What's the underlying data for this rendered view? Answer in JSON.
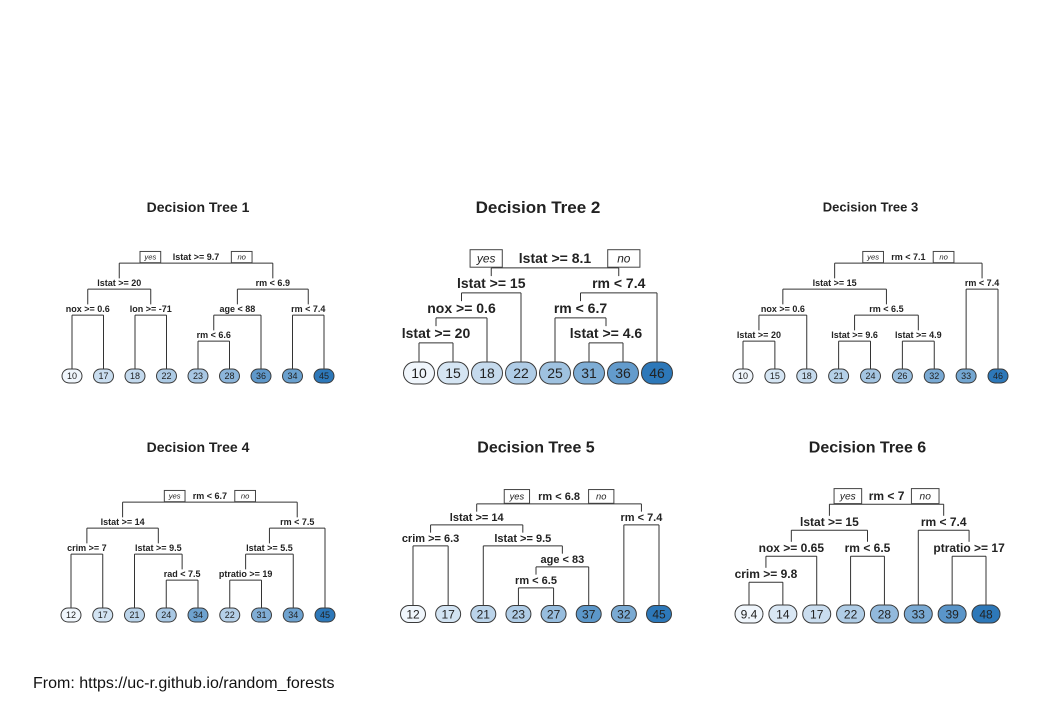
{
  "source_text": "From: https://uc-r.github.io/random_forests",
  "labels": {
    "yes": "yes",
    "no": "no"
  },
  "trees": [
    {
      "title": "Decision Tree 1",
      "root": {
        "split": "lstat >= 9.7",
        "yes": {
          "split": "lstat >= 20",
          "yes": {
            "split": "nox >= 0.6",
            "yes": {
              "leaf": "10"
            },
            "no": {
              "leaf": "17"
            }
          },
          "no": {
            "split": "lon >= -71",
            "yes": {
              "leaf": "18"
            },
            "no": {
              "leaf": "22"
            }
          }
        },
        "no": {
          "split": "rm < 6.9",
          "yes": {
            "split": "age < 88",
            "yes": {
              "split": "rm < 6.6",
              "yes": {
                "leaf": "23"
              },
              "no": {
                "leaf": "28"
              }
            },
            "no": {
              "leaf": "36"
            }
          },
          "no": {
            "split": "rm < 7.4",
            "yes": {
              "leaf": "34"
            },
            "no": {
              "leaf": "45"
            }
          }
        }
      }
    },
    {
      "title": "Decision Tree 2",
      "root": {
        "split": "lstat >= 8.1",
        "yes": {
          "split": "lstat >= 15",
          "yes": {
            "split": "nox >= 0.6",
            "yes": {
              "split": "lstat >= 20",
              "yes": {
                "leaf": "10"
              },
              "no": {
                "leaf": "15"
              }
            },
            "no": {
              "leaf": "18"
            }
          },
          "no": {
            "leaf": "22"
          }
        },
        "no": {
          "split": "rm < 7.4",
          "yes": {
            "split": "rm < 6.7",
            "yes": {
              "leaf": "25"
            },
            "no": {
              "split": "lstat >= 4.6",
              "yes": {
                "leaf": "31"
              },
              "no": {
                "leaf": "36"
              }
            }
          },
          "no": {
            "leaf": "46"
          }
        }
      }
    },
    {
      "title": "Decision Tree 3",
      "root": {
        "split": "rm < 7.1",
        "yes": {
          "split": "lstat >= 15",
          "yes": {
            "split": "nox >= 0.6",
            "yes": {
              "split": "lstat >= 20",
              "yes": {
                "leaf": "10"
              },
              "no": {
                "leaf": "15"
              }
            },
            "no": {
              "leaf": "18"
            }
          },
          "no": {
            "split": "rm < 6.5",
            "yes": {
              "split": "lstat >= 9.6",
              "yes": {
                "leaf": "21"
              },
              "no": {
                "leaf": "24"
              }
            },
            "no": {
              "split": "lstat >= 4.9",
              "yes": {
                "leaf": "26"
              },
              "no": {
                "leaf": "32"
              }
            }
          }
        },
        "no": {
          "split": "rm < 7.4",
          "yes": {
            "leaf": "33"
          },
          "no": {
            "leaf": "46"
          }
        }
      }
    },
    {
      "title": "Decision Tree 4",
      "root": {
        "split": "rm < 6.7",
        "yes": {
          "split": "lstat >= 14",
          "yes": {
            "split": "crim >= 7",
            "yes": {
              "leaf": "12"
            },
            "no": {
              "leaf": "17"
            }
          },
          "no": {
            "split": "lstat >= 9.5",
            "yes": {
              "leaf": "21"
            },
            "no": {
              "split": "rad < 7.5",
              "yes": {
                "leaf": "24"
              },
              "no": {
                "leaf": "34"
              }
            }
          }
        },
        "no": {
          "split": "rm < 7.5",
          "yes": {
            "split": "lstat >= 5.5",
            "yes": {
              "split": "ptratio >= 19",
              "yes": {
                "leaf": "22"
              },
              "no": {
                "leaf": "31"
              }
            },
            "no": {
              "leaf": "34"
            }
          },
          "no": {
            "leaf": "45"
          }
        }
      }
    },
    {
      "title": "Decision Tree 5",
      "root": {
        "split": "rm < 6.8",
        "yes": {
          "split": "lstat >= 14",
          "yes": {
            "split": "crim >= 6.3",
            "yes": {
              "leaf": "12"
            },
            "no": {
              "leaf": "17"
            }
          },
          "no": {
            "split": "lstat >= 9.5",
            "yes": {
              "leaf": "21"
            },
            "no": {
              "split": "age < 83",
              "yes": {
                "split": "rm < 6.5",
                "yes": {
                  "leaf": "23"
                },
                "no": {
                  "leaf": "27"
                }
              },
              "no": {
                "leaf": "37"
              }
            }
          }
        },
        "no": {
          "split": "rm < 7.4",
          "yes": {
            "leaf": "32"
          },
          "no": {
            "leaf": "45"
          }
        }
      }
    },
    {
      "title": "Decision Tree 6",
      "root": {
        "split": "rm < 7",
        "yes": {
          "split": "lstat >= 15",
          "yes": {
            "split": "nox >= 0.65",
            "yes": {
              "split": "crim >= 9.8",
              "yes": {
                "leaf": "9.4"
              },
              "no": {
                "leaf": "14"
              }
            },
            "no": {
              "leaf": "17"
            }
          },
          "no": {
            "split": "rm < 6.5",
            "yes": {
              "leaf": "22"
            },
            "no": {
              "leaf": "28"
            }
          }
        },
        "no": {
          "split": "rm < 7.4",
          "yes": {
            "leaf": "33"
          },
          "no": {
            "split": "ptratio >= 17",
            "yes": {
              "leaf": "39"
            },
            "no": {
              "leaf": "48"
            }
          }
        }
      }
    }
  ]
}
